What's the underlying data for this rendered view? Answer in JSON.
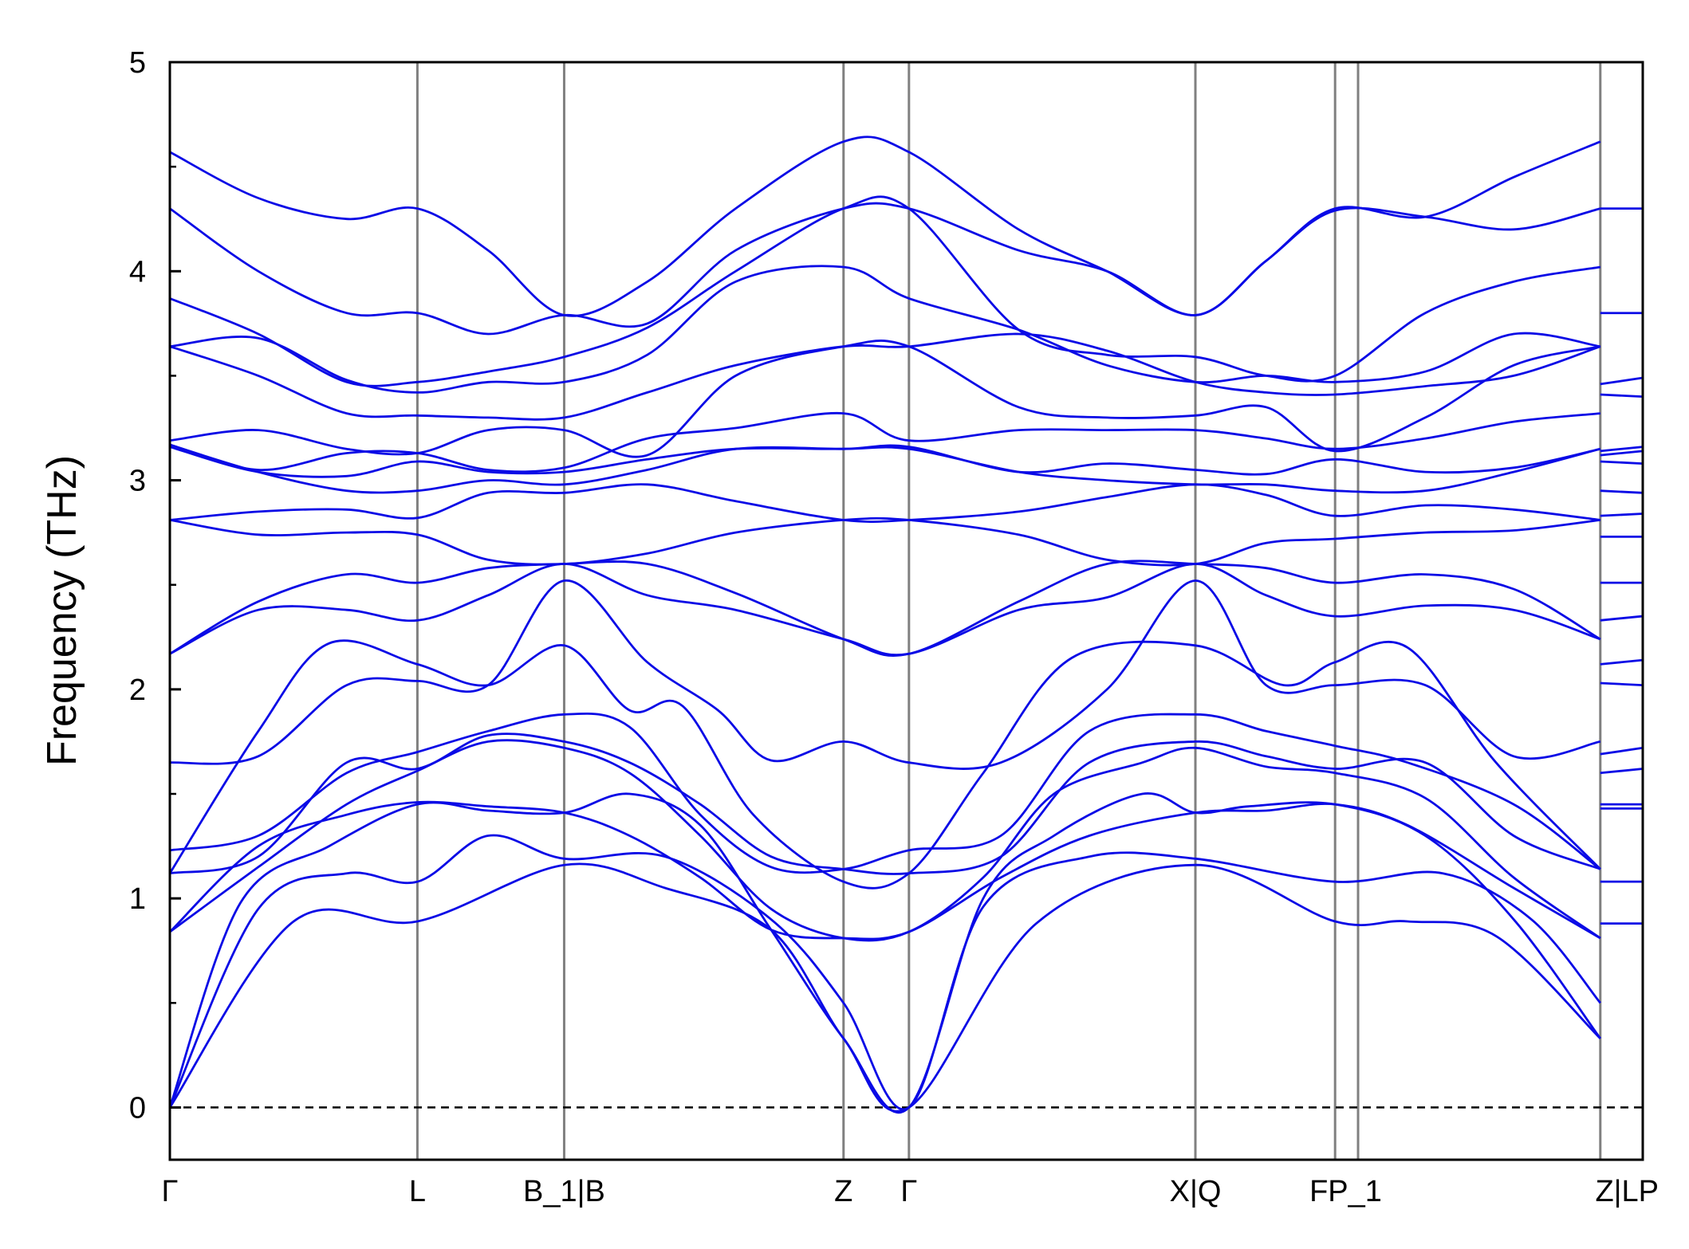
{
  "chart_data": {
    "type": "line",
    "title": "",
    "xlabel": "",
    "ylabel": "Frequency (THz)",
    "ylim": [
      -0.25,
      5
    ],
    "y_ticks": [
      0,
      1,
      2,
      3,
      4,
      5
    ],
    "y_minor_ticks": [
      0.5,
      1.5,
      2.5,
      3.5,
      4.5
    ],
    "xlim": [
      0,
      8.33
    ],
    "x_ticks": [
      {
        "label": "Γ",
        "x": 0
      },
      {
        "label": "L",
        "x": 1.4
      },
      {
        "label": "B_1|B",
        "x": 2.23
      },
      {
        "label": "Z",
        "x": 3.81
      },
      {
        "label": "Γ",
        "x": 4.18
      },
      {
        "label": "X|Q",
        "x": 5.8
      },
      {
        "label": "FP_1",
        "x": 6.65
      },
      {
        "label": "Z|LP",
        "x": 8.33
      }
    ],
    "vlines_x": [
      1.4,
      2.23,
      3.81,
      4.18,
      5.8,
      6.59,
      6.72,
      8.09
    ],
    "zero_line": 0,
    "grid": false,
    "line_color": "#0a0ae6",
    "vline_color": "#808080",
    "series": [
      {
        "x": [
          0,
          0.7,
          1.4,
          2.23,
          2.8,
          3.4,
          3.81,
          4.18,
          4.9,
          5.8,
          6.59,
          7.0,
          7.5,
          8.09
        ],
        "values": [
          0,
          0.89,
          0.89,
          1.16,
          1.05,
          0.85,
          0.33,
          0,
          0.88,
          1.16,
          0.89,
          0.89,
          0.82,
          0.33
        ]
      },
      {
        "x": [
          0,
          0.5,
          1.0,
          1.4,
          1.8,
          2.23,
          2.8,
          3.4,
          3.81,
          4.18,
          4.6,
          5.2,
          5.8,
          6.59,
          7.2,
          7.7,
          8.09
        ],
        "values": [
          0,
          0.95,
          1.12,
          1.08,
          1.3,
          1.19,
          1.2,
          0.9,
          0.5,
          0,
          0.96,
          1.2,
          1.19,
          1.08,
          1.12,
          0.9,
          0.5
        ]
      },
      {
        "x": [
          0,
          0.4,
          0.9,
          1.4,
          1.8,
          2.23,
          2.6,
          3.0,
          3.4,
          3.81,
          4.18,
          4.6,
          5.0,
          5.5,
          5.8,
          6.1,
          6.59,
          7.1,
          7.6,
          8.09
        ],
        "values": [
          0,
          0.98,
          1.25,
          1.45,
          1.42,
          1.41,
          1.5,
          1.35,
          0.85,
          0.33,
          0,
          1.0,
          1.3,
          1.5,
          1.41,
          1.44,
          1.45,
          1.3,
          0.9,
          0.33
        ]
      },
      {
        "x": [
          0,
          0.5,
          1.0,
          1.4,
          1.8,
          2.23,
          2.6,
          3.0,
          3.4,
          3.81,
          4.18,
          4.7,
          5.2,
          5.8,
          6.2,
          6.59,
          7.0,
          7.6,
          8.09
        ],
        "values": [
          0.84,
          1.25,
          1.4,
          1.46,
          1.44,
          1.41,
          1.3,
          1.1,
          0.85,
          0.81,
          0.84,
          1.1,
          1.3,
          1.41,
          1.42,
          1.45,
          1.35,
          1.05,
          0.81
        ]
      },
      {
        "x": [
          0,
          0.5,
          1.0,
          1.4,
          1.8,
          2.23,
          2.6,
          3.0,
          3.4,
          3.81,
          4.18,
          4.6,
          5.0,
          5.5,
          5.8,
          6.2,
          6.59,
          7.1,
          7.6,
          8.09
        ],
        "values": [
          0.84,
          1.15,
          1.45,
          1.61,
          1.75,
          1.72,
          1.6,
          1.3,
          0.95,
          0.81,
          0.84,
          1.1,
          1.5,
          1.65,
          1.72,
          1.63,
          1.6,
          1.48,
          1.1,
          0.81
        ]
      },
      {
        "x": [
          0,
          0.5,
          1.0,
          1.4,
          1.8,
          2.23,
          2.6,
          3.0,
          3.4,
          3.81,
          4.18,
          4.7,
          5.2,
          5.8,
          6.2,
          6.59,
          7.1,
          7.6,
          8.09
        ],
        "values": [
          1.12,
          1.2,
          1.65,
          1.62,
          1.78,
          1.75,
          1.65,
          1.45,
          1.2,
          1.14,
          1.12,
          1.2,
          1.65,
          1.75,
          1.68,
          1.62,
          1.65,
          1.3,
          1.14
        ]
      },
      {
        "x": [
          0,
          0.5,
          1.0,
          1.4,
          1.8,
          2.23,
          2.6,
          3.0,
          3.4,
          3.81,
          4.18,
          4.7,
          5.2,
          5.8,
          6.2,
          6.59,
          7.0,
          7.6,
          8.09
        ],
        "values": [
          1.23,
          1.3,
          1.6,
          1.7,
          1.8,
          1.88,
          1.82,
          1.4,
          1.15,
          1.14,
          1.23,
          1.3,
          1.8,
          1.88,
          1.8,
          1.73,
          1.65,
          1.45,
          1.14
        ]
      },
      {
        "x": [
          0,
          0.5,
          0.9,
          1.4,
          1.8,
          2.23,
          2.6,
          2.9,
          3.3,
          3.81,
          4.18,
          4.6,
          5.1,
          5.8,
          6.3,
          6.59,
          7.0,
          7.5,
          8.09
        ],
        "values": [
          1.12,
          1.8,
          2.22,
          2.12,
          2.02,
          2.21,
          1.9,
          1.92,
          1.4,
          1.08,
          1.12,
          1.6,
          2.15,
          2.21,
          2.02,
          2.13,
          2.2,
          1.65,
          1.14
        ]
      },
      {
        "x": [
          0,
          0.5,
          1.0,
          1.4,
          1.8,
          2.23,
          2.7,
          3.1,
          3.4,
          3.81,
          4.18,
          4.7,
          5.3,
          5.8,
          6.2,
          6.59,
          7.1,
          7.6,
          8.09
        ],
        "values": [
          1.65,
          1.68,
          2.02,
          2.04,
          2.02,
          2.52,
          2.13,
          1.9,
          1.66,
          1.75,
          1.65,
          1.65,
          2.0,
          2.52,
          2.02,
          2.02,
          2.02,
          1.68,
          1.75
        ]
      },
      {
        "x": [
          0,
          0.5,
          1.0,
          1.4,
          1.8,
          2.23,
          2.7,
          3.2,
          3.81,
          4.18,
          4.8,
          5.3,
          5.8,
          6.2,
          6.59,
          7.1,
          7.6,
          8.09
        ],
        "values": [
          2.17,
          2.38,
          2.38,
          2.33,
          2.45,
          2.6,
          2.45,
          2.38,
          2.24,
          2.17,
          2.38,
          2.44,
          2.6,
          2.45,
          2.35,
          2.4,
          2.38,
          2.24
        ]
      },
      {
        "x": [
          0,
          0.5,
          1.0,
          1.4,
          1.8,
          2.23,
          2.7,
          3.2,
          3.81,
          4.18,
          4.8,
          5.3,
          5.8,
          6.2,
          6.59,
          7.1,
          7.6,
          8.09
        ],
        "values": [
          2.17,
          2.42,
          2.55,
          2.51,
          2.58,
          2.6,
          2.6,
          2.46,
          2.24,
          2.17,
          2.42,
          2.6,
          2.6,
          2.58,
          2.51,
          2.55,
          2.48,
          2.24
        ]
      },
      {
        "x": [
          0,
          0.5,
          1.0,
          1.4,
          1.8,
          2.23,
          2.7,
          3.2,
          3.81,
          4.18,
          4.8,
          5.3,
          5.8,
          6.2,
          6.59,
          7.1,
          7.6,
          8.09
        ],
        "values": [
          2.81,
          2.74,
          2.75,
          2.74,
          2.62,
          2.6,
          2.65,
          2.75,
          2.81,
          2.81,
          2.74,
          2.62,
          2.6,
          2.7,
          2.72,
          2.75,
          2.76,
          2.81
        ]
      },
      {
        "x": [
          0,
          0.5,
          1.0,
          1.4,
          1.8,
          2.23,
          2.7,
          3.2,
          3.81,
          4.18,
          4.8,
          5.3,
          5.8,
          6.2,
          6.59,
          7.1,
          7.6,
          8.09
        ],
        "values": [
          2.81,
          2.85,
          2.86,
          2.82,
          2.94,
          2.94,
          2.98,
          2.9,
          2.81,
          2.81,
          2.85,
          2.92,
          2.98,
          2.93,
          2.83,
          2.88,
          2.86,
          2.81
        ]
      },
      {
        "x": [
          0,
          0.5,
          1.0,
          1.4,
          1.8,
          2.23,
          2.7,
          3.2,
          3.81,
          4.18,
          4.8,
          5.3,
          5.8,
          6.2,
          6.59,
          7.1,
          7.6,
          8.09
        ],
        "values": [
          3.17,
          3.04,
          2.95,
          2.95,
          3.0,
          2.98,
          3.05,
          3.15,
          3.15,
          3.15,
          3.04,
          3.0,
          2.98,
          2.98,
          2.95,
          2.95,
          3.04,
          3.15
        ]
      },
      {
        "x": [
          0,
          0.5,
          1.0,
          1.4,
          1.8,
          2.23,
          2.7,
          3.2,
          3.81,
          4.18,
          4.8,
          5.3,
          5.8,
          6.2,
          6.59,
          7.1,
          7.6,
          8.09
        ],
        "values": [
          3.16,
          3.04,
          3.02,
          3.09,
          3.04,
          3.04,
          3.1,
          3.15,
          3.15,
          3.16,
          3.04,
          3.08,
          3.05,
          3.03,
          3.1,
          3.04,
          3.06,
          3.15
        ]
      },
      {
        "x": [
          0,
          0.5,
          1.0,
          1.4,
          1.8,
          2.23,
          2.7,
          3.2,
          3.81,
          4.18,
          4.8,
          5.3,
          5.8,
          6.2,
          6.59,
          7.1,
          7.6,
          8.09
        ],
        "values": [
          3.17,
          3.05,
          3.13,
          3.13,
          3.05,
          3.06,
          3.2,
          3.25,
          3.32,
          3.19,
          3.24,
          3.24,
          3.24,
          3.2,
          3.15,
          3.2,
          3.28,
          3.32
        ]
      },
      {
        "x": [
          0,
          0.5,
          1.0,
          1.4,
          1.8,
          2.23,
          2.7,
          3.2,
          3.81,
          4.18,
          4.8,
          5.3,
          5.8,
          6.2,
          6.59,
          7.1,
          7.6,
          8.09
        ],
        "values": [
          3.19,
          3.24,
          3.15,
          3.13,
          3.24,
          3.24,
          3.12,
          3.5,
          3.64,
          3.64,
          3.35,
          3.3,
          3.31,
          3.35,
          3.14,
          3.3,
          3.55,
          3.64
        ]
      },
      {
        "x": [
          0,
          0.5,
          1.0,
          1.4,
          1.8,
          2.23,
          2.7,
          3.2,
          3.81,
          4.18,
          4.8,
          5.3,
          5.8,
          6.2,
          6.59,
          7.1,
          7.6,
          8.09
        ],
        "values": [
          3.64,
          3.5,
          3.32,
          3.31,
          3.3,
          3.3,
          3.42,
          3.55,
          3.64,
          3.64,
          3.7,
          3.62,
          3.47,
          3.42,
          3.41,
          3.45,
          3.5,
          3.64
        ]
      },
      {
        "x": [
          0,
          0.5,
          1.0,
          1.4,
          1.8,
          2.23,
          2.7,
          3.2,
          3.81,
          4.18,
          4.8,
          5.3,
          5.8,
          6.2,
          6.59,
          7.1,
          7.6,
          8.09
        ],
        "values": [
          3.64,
          3.68,
          3.48,
          3.42,
          3.47,
          3.47,
          3.6,
          3.95,
          4.02,
          3.87,
          3.72,
          3.55,
          3.47,
          3.5,
          3.47,
          3.52,
          3.7,
          3.64
        ]
      },
      {
        "x": [
          0,
          0.5,
          1.0,
          1.4,
          1.8,
          2.23,
          2.7,
          3.2,
          3.81,
          4.18,
          4.8,
          5.3,
          5.8,
          6.2,
          6.59,
          7.1,
          7.6,
          8.09
        ],
        "values": [
          3.87,
          3.7,
          3.47,
          3.47,
          3.52,
          3.59,
          3.73,
          4.0,
          4.3,
          4.3,
          3.72,
          3.6,
          3.59,
          3.5,
          3.5,
          3.8,
          3.95,
          4.02
        ]
      },
      {
        "x": [
          0,
          0.5,
          1.0,
          1.4,
          1.8,
          2.23,
          2.7,
          3.2,
          3.81,
          4.18,
          4.8,
          5.3,
          5.8,
          6.2,
          6.59,
          7.1,
          7.6,
          8.09
        ],
        "values": [
          4.3,
          4.0,
          3.8,
          3.8,
          3.7,
          3.79,
          3.75,
          4.1,
          4.3,
          4.3,
          4.1,
          4.0,
          3.79,
          4.05,
          4.29,
          4.26,
          4.2,
          4.3
        ]
      },
      {
        "x": [
          0,
          0.5,
          1.0,
          1.4,
          1.8,
          2.23,
          2.7,
          3.2,
          3.81,
          4.18,
          4.8,
          5.3,
          5.8,
          6.2,
          6.59,
          7.1,
          7.6,
          8.09
        ],
        "values": [
          4.57,
          4.35,
          4.25,
          4.3,
          4.1,
          3.79,
          3.95,
          4.3,
          4.62,
          4.57,
          4.2,
          4.0,
          3.79,
          4.05,
          4.3,
          4.26,
          4.45,
          4.62
        ]
      }
    ],
    "end_segments": {
      "x": [
        8.09,
        8.33
      ],
      "values": [
        [
          0.88,
          0.88
        ],
        [
          1.08,
          1.08
        ],
        [
          1.43,
          1.43
        ],
        [
          1.45,
          1.45
        ],
        [
          1.6,
          1.62
        ],
        [
          1.69,
          1.72
        ],
        [
          2.03,
          2.02
        ],
        [
          2.12,
          2.14
        ],
        [
          2.33,
          2.35
        ],
        [
          2.51,
          2.51
        ],
        [
          2.73,
          2.73
        ],
        [
          2.83,
          2.84
        ],
        [
          2.95,
          2.94
        ],
        [
          3.09,
          3.08
        ],
        [
          3.12,
          3.14
        ],
        [
          3.14,
          3.16
        ],
        [
          3.41,
          3.4
        ],
        [
          3.46,
          3.49
        ],
        [
          3.8,
          3.8
        ],
        [
          4.3,
          4.3
        ]
      ]
    }
  }
}
